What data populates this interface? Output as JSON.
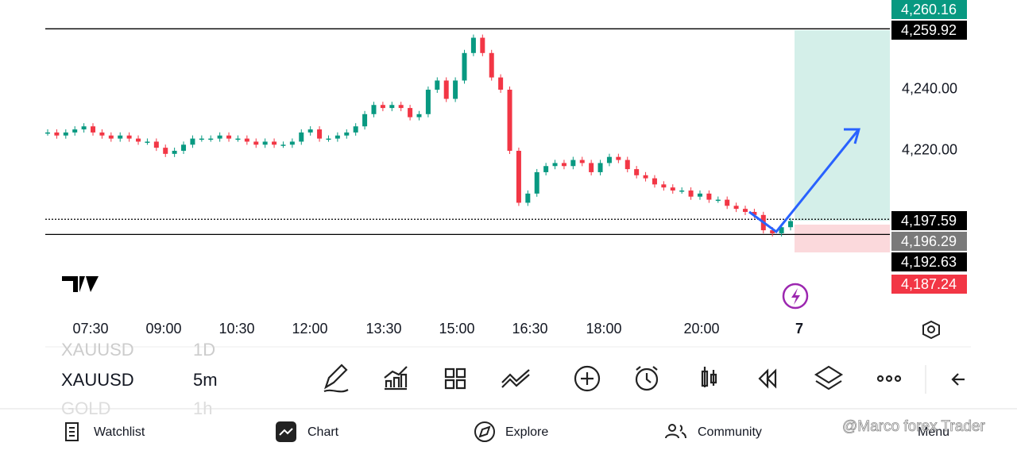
{
  "chart_data": {
    "type": "candlestick",
    "up_color": "#089981",
    "down_color": "#f23645",
    "closes": [
      4226,
      4225,
      4226,
      4227,
      4228,
      4226,
      4225,
      4224,
      4225,
      4224,
      4223,
      4223,
      4221,
      4219,
      4220,
      4222,
      4224,
      4224,
      4224,
      4225,
      4224,
      4224,
      4223,
      4222,
      4223,
      4222,
      4222,
      4223,
      4226,
      4227,
      4224,
      4224,
      4225,
      4226,
      4228,
      4232,
      4235,
      4234,
      4235,
      4234,
      4231,
      4232,
      4240,
      4243,
      4237,
      4243,
      4252,
      4257,
      4252,
      4244,
      4240,
      4220,
      4203,
      4206,
      4213,
      4215,
      4216,
      4215,
      4217,
      4216,
      4213,
      4216,
      4218,
      4217,
      4214,
      4212,
      4211,
      4209,
      4208,
      4207,
      4207,
      4205,
      4206,
      4204,
      4204,
      4202,
      4201,
      4200,
      4199,
      4194,
      4193,
      4195,
      4197
    ],
    "ylim": [
      4165.45,
      4269.35
    ],
    "yticks": [
      {
        "value": 4240,
        "label": "4,240.00"
      },
      {
        "value": 4220,
        "label": "4,220.00"
      }
    ],
    "price_labels": [
      {
        "value": 4260.16,
        "label": "4,260.16",
        "color": "#089981"
      },
      {
        "value": 4259.92,
        "label": "4,259.92",
        "color": "#000000"
      },
      {
        "value": 4197.59,
        "label": "4,197.59",
        "color": "#000000"
      },
      {
        "value": 4196.29,
        "label": "4,196.29",
        "color": "#7a7a7a"
      },
      {
        "value": 4192.63,
        "label": "4,192.63",
        "color": "#000000"
      },
      {
        "value": 4187.24,
        "label": "4,187.24",
        "color": "#f23645"
      }
    ],
    "time_labels": [
      "07:30",
      "09:00",
      "10:30",
      "12:00",
      "13:30",
      "15:00",
      "16:30",
      "18:00",
      "20:00",
      "7"
    ]
  },
  "symbols": [
    {
      "name": "XAUUSD",
      "interval": "1D"
    },
    {
      "name": "XAUUSD",
      "interval": "5m"
    },
    {
      "name": "GOLD",
      "interval": "1h"
    }
  ],
  "nav": [
    "Watchlist",
    "Chart",
    "Explore",
    "Community",
    "Menu"
  ],
  "watermark": "@Marco forex Trader"
}
